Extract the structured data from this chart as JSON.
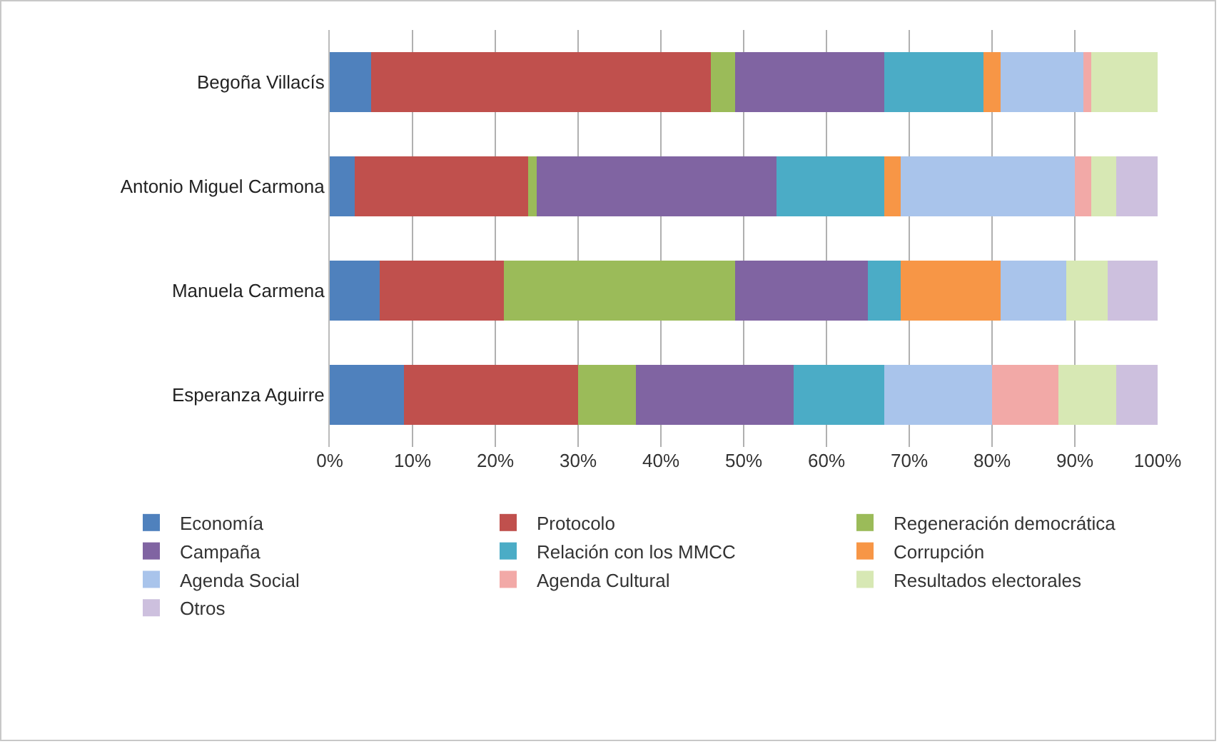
{
  "chart_data": {
    "type": "bar",
    "orientation": "horizontal",
    "stacked": true,
    "categories": [
      "Begoña Villacís",
      "Antonio Miguel Carmona",
      "Manuela Carmena",
      "Esperanza Aguirre"
    ],
    "series": [
      {
        "name": "Economía",
        "color": "#4f81bd",
        "values": [
          5,
          3,
          6,
          9
        ]
      },
      {
        "name": "Protocolo",
        "color": "#c0504d",
        "values": [
          41,
          21,
          15,
          21
        ]
      },
      {
        "name": "Regeneración democrática",
        "color": "#9bbb59",
        "values": [
          3,
          1,
          28,
          7
        ]
      },
      {
        "name": "Campaña",
        "color": "#8064a2",
        "values": [
          18,
          29,
          16,
          19
        ]
      },
      {
        "name": "Relación con los MMCC",
        "color": "#4bacc6",
        "values": [
          12,
          13,
          4,
          11
        ]
      },
      {
        "name": "Corrupción",
        "color": "#f79646",
        "values": [
          2,
          2,
          12,
          0
        ]
      },
      {
        "name": "Agenda Social",
        "color": "#a9c4eb",
        "values": [
          10,
          21,
          8,
          13
        ]
      },
      {
        "name": "Agenda Cultural",
        "color": "#f2a9a7",
        "values": [
          1,
          2,
          0,
          8
        ]
      },
      {
        "name": "Resultados electorales",
        "color": "#d7e8b4",
        "values": [
          8,
          3,
          5,
          7
        ]
      },
      {
        "name": "Otros",
        "color": "#cdc0de",
        "values": [
          0,
          5,
          6,
          5
        ]
      }
    ],
    "xlim": [
      0,
      100
    ],
    "xticks": [
      {
        "value": 0,
        "label": "0%"
      },
      {
        "value": 10,
        "label": "10%"
      },
      {
        "value": 20,
        "label": "20%"
      },
      {
        "value": 30,
        "label": "30%"
      },
      {
        "value": 40,
        "label": "40%"
      },
      {
        "value": 50,
        "label": "50%"
      },
      {
        "value": 60,
        "label": "60%"
      },
      {
        "value": 70,
        "label": "70%"
      },
      {
        "value": 80,
        "label": "80%"
      },
      {
        "value": 90,
        "label": "90%"
      },
      {
        "value": 100,
        "label": "100%"
      }
    ],
    "grid": "x",
    "legend": "bottom"
  }
}
